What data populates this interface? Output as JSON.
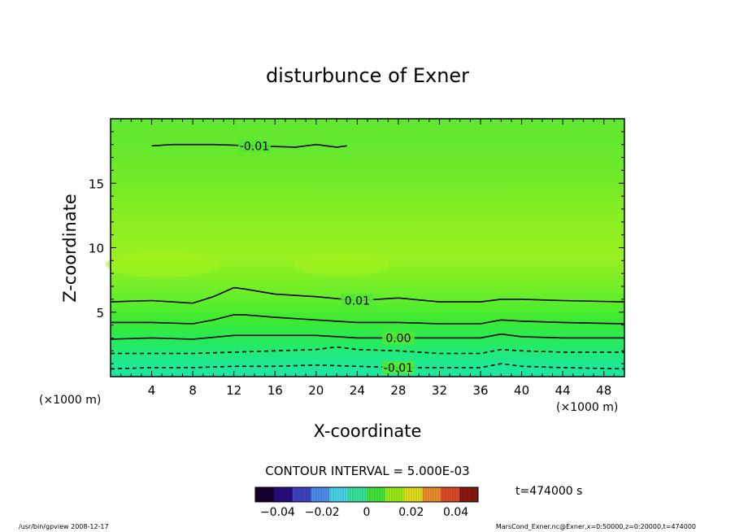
{
  "chart_data": {
    "type": "contour",
    "title": "disturbunce of Exner",
    "xlabel": "X-coordinate",
    "ylabel": "Z-coordinate",
    "x_unit": "(×1000 m)",
    "y_unit": "(×1000 m)",
    "xlim": [
      0,
      50
    ],
    "ylim": [
      0,
      20
    ],
    "x_ticks": [
      4,
      8,
      12,
      16,
      20,
      24,
      28,
      32,
      36,
      40,
      44,
      48
    ],
    "y_ticks": [
      5,
      10,
      15
    ],
    "contour_interval_text": "CONTOUR INTERVAL = 5.000E-03",
    "time_text": "t=474000 s",
    "colorbar": {
      "ticks": [
        "−0.04",
        "−0.02",
        "0",
        "0.02",
        "0.04"
      ],
      "tick_values": [
        -0.04,
        -0.02,
        0,
        0.02,
        0.04
      ],
      "range": [
        -0.05,
        0.05
      ],
      "colors": [
        "#1a0030",
        "#2b0d80",
        "#3c45c8",
        "#4f8ef0",
        "#4ad8e8",
        "#39e6a0",
        "#45e83a",
        "#9bf01a",
        "#e6e020",
        "#f09030",
        "#e04c28",
        "#8a1a10"
      ]
    },
    "contours": [
      {
        "label": "0.01",
        "value": 0.01,
        "style": "solid",
        "x": [
          0,
          4,
          8,
          10,
          12,
          13,
          16,
          20,
          24,
          28,
          32,
          36,
          38,
          40,
          44,
          50
        ],
        "y": [
          5.8,
          5.9,
          5.7,
          6.2,
          6.9,
          6.8,
          6.4,
          6.2,
          5.9,
          6.1,
          5.8,
          5.8,
          6.0,
          6.0,
          5.9,
          5.8
        ]
      },
      {
        "label": "",
        "value": 0.005,
        "style": "solid",
        "x": [
          0,
          4,
          8,
          10,
          12,
          13,
          16,
          20,
          24,
          28,
          32,
          36,
          38,
          40,
          44,
          50
        ],
        "y": [
          4.2,
          4.2,
          4.1,
          4.4,
          4.8,
          4.8,
          4.6,
          4.4,
          4.2,
          4.2,
          4.1,
          4.1,
          4.4,
          4.3,
          4.2,
          4.1
        ]
      },
      {
        "label": "0.00",
        "value": 0.0,
        "style": "solid",
        "x": [
          0,
          4,
          8,
          12,
          16,
          20,
          24,
          28,
          32,
          36,
          38,
          40,
          44,
          50
        ],
        "y": [
          2.9,
          3.0,
          2.9,
          3.2,
          3.2,
          3.2,
          3.0,
          3.0,
          3.0,
          3.0,
          3.3,
          3.1,
          3.0,
          3.0
        ]
      },
      {
        "label": "",
        "value": -0.005,
        "style": "dashed",
        "x": [
          0,
          4,
          8,
          12,
          16,
          20,
          22,
          24,
          28,
          32,
          36,
          38,
          40,
          44,
          50
        ],
        "y": [
          1.8,
          1.8,
          1.8,
          1.9,
          2.0,
          2.1,
          2.3,
          2.1,
          2.0,
          1.8,
          1.8,
          2.1,
          2.0,
          1.9,
          1.9
        ]
      },
      {
        "label": "-0.01",
        "value": -0.01,
        "style": "dashed",
        "x": [
          0,
          4,
          8,
          12,
          16,
          20,
          24,
          28,
          32,
          36,
          38,
          40,
          44,
          50
        ],
        "y": [
          0.6,
          0.7,
          0.7,
          0.8,
          0.8,
          0.9,
          0.8,
          0.7,
          0.7,
          0.7,
          1.0,
          0.8,
          0.7,
          0.6
        ]
      },
      {
        "label": "-0.01",
        "value": -0.01,
        "style": "solid",
        "x": [
          4,
          6,
          8,
          10,
          14,
          18,
          20,
          22,
          23
        ],
        "y": [
          17.9,
          18.0,
          18.0,
          18.0,
          17.9,
          17.8,
          18.0,
          17.8,
          17.9
        ]
      }
    ]
  },
  "footer": {
    "left": "/usr/bin/gpview   2008-12-17",
    "right": "MarsCond_Exner.nc@Exner,x=0:50000,z=0:20000,t=474000"
  }
}
